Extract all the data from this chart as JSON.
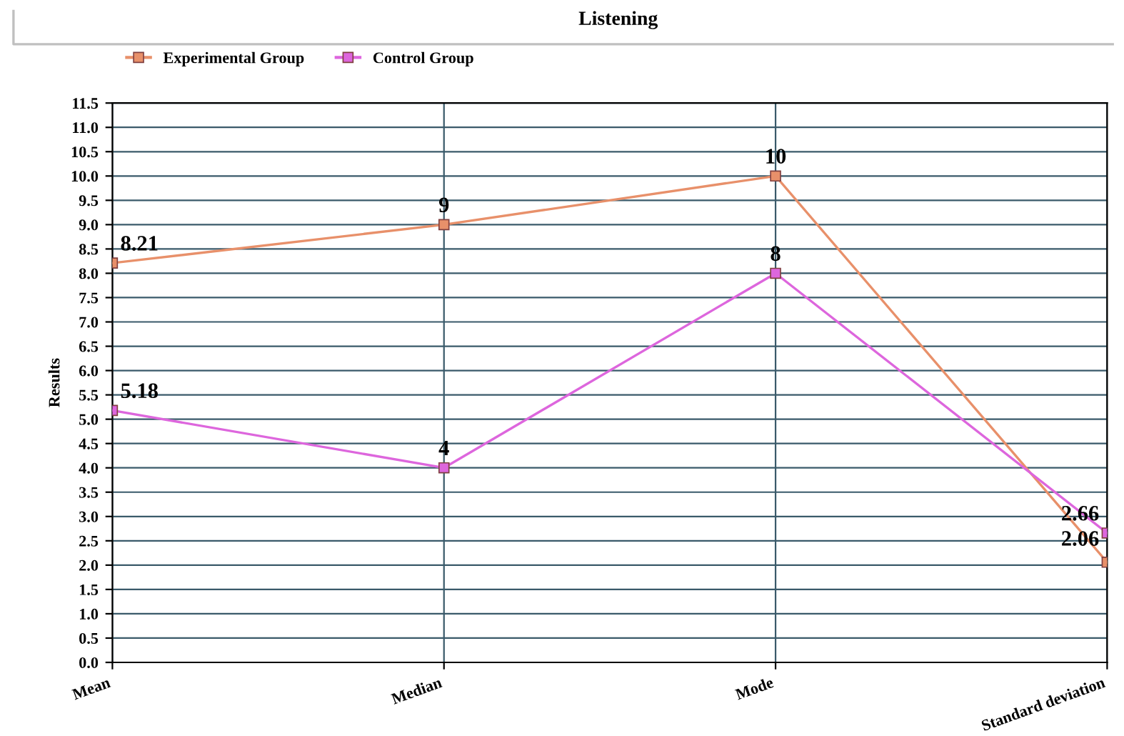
{
  "chart_data": {
    "type": "line",
    "title": "Listening",
    "ylabel": "Results",
    "categories": [
      "Mean",
      "Median",
      "Mode",
      "Standard deviation"
    ],
    "series": [
      {
        "name": "Experimental Group",
        "color": "#e8906a",
        "values": [
          8.21,
          9,
          10,
          2.06
        ]
      },
      {
        "name": "Control Group",
        "color": "#dd66dd",
        "values": [
          5.18,
          4,
          8,
          2.66
        ]
      }
    ],
    "ylim": [
      0,
      11.5
    ],
    "yticks": [
      {
        "value": 0,
        "label": "0.0"
      },
      {
        "value": 0.5,
        "label": "0.5"
      },
      {
        "value": 1,
        "label": "1.0"
      },
      {
        "value": 1.5,
        "label": "1.5"
      },
      {
        "value": 2,
        "label": "2.0"
      },
      {
        "value": 2.5,
        "label": "2.5"
      },
      {
        "value": 3,
        "label": "3.0"
      },
      {
        "value": 3.5,
        "label": "3.5"
      },
      {
        "value": 4,
        "label": "4.0"
      },
      {
        "value": 4.5,
        "label": "4.5"
      },
      {
        "value": 5,
        "label": "5.0"
      },
      {
        "value": 5.5,
        "label": "5.5"
      },
      {
        "value": 6,
        "label": "6.0"
      },
      {
        "value": 6.5,
        "label": "6.5"
      },
      {
        "value": 7,
        "label": "7.0"
      },
      {
        "value": 7.5,
        "label": "7.5"
      },
      {
        "value": 8,
        "label": "8.0"
      },
      {
        "value": 8.5,
        "label": "8.5"
      },
      {
        "value": 9,
        "label": "9.0"
      },
      {
        "value": 9.5,
        "label": "9.5"
      },
      {
        "value": 10,
        "label": "10.0"
      },
      {
        "value": 10.5,
        "label": "10.5"
      },
      {
        "value": 11,
        "label": "11.0"
      },
      {
        "value": 11.5,
        "label": "11.5"
      }
    ],
    "grid": true,
    "legend": "top left",
    "marker": "square",
    "line_style": "solid",
    "data_labels": true
  }
}
